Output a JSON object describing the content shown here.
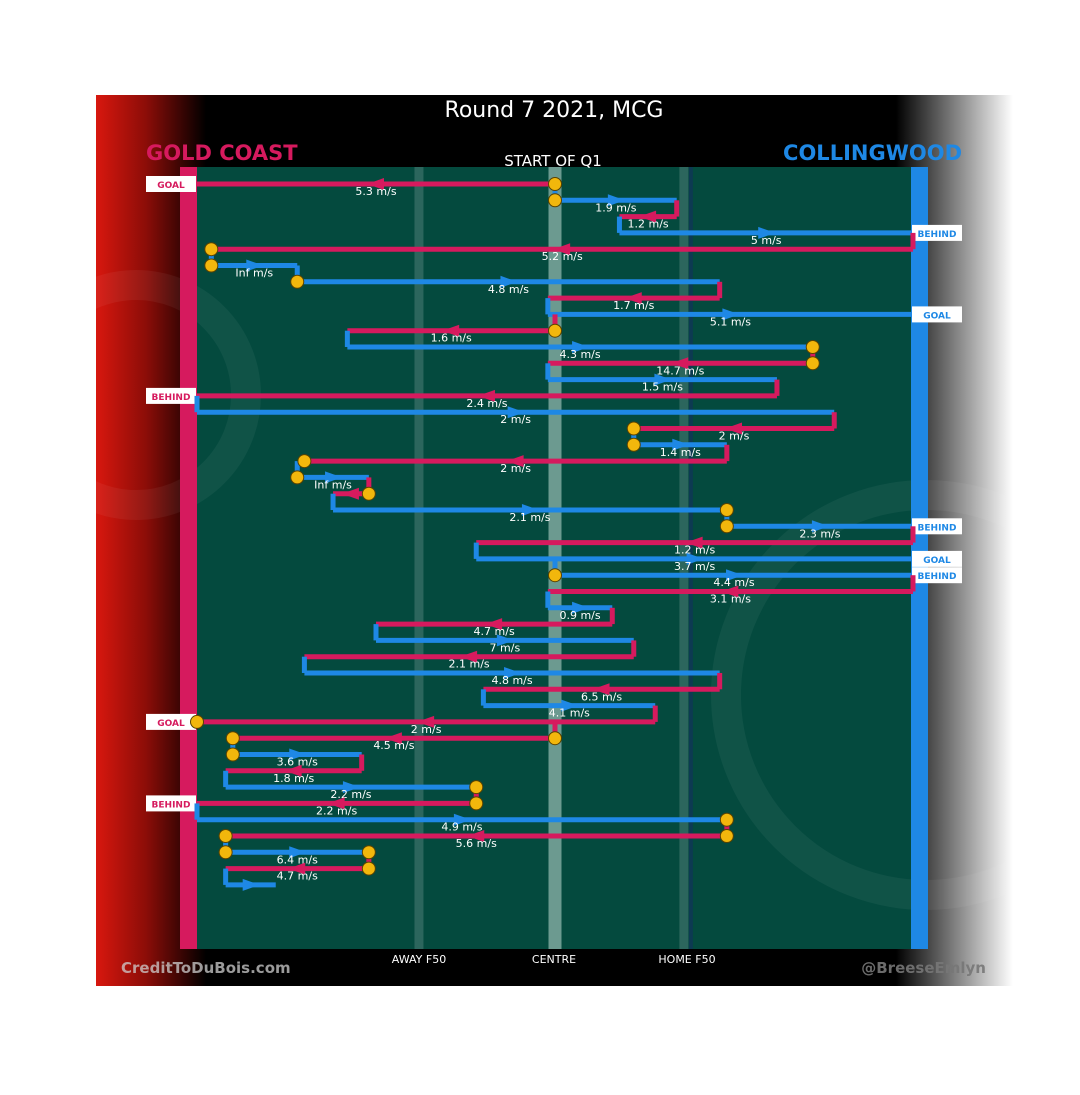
{
  "chart_data": {
    "type": "line",
    "title": "Round 7 2021, MCG",
    "subtitle": "START OF Q1",
    "teams": {
      "home": {
        "name": "GOLD COAST",
        "color": "#d61a5e"
      },
      "away": {
        "name": "COLLINGWOOD",
        "color": "#1e88e5"
      }
    },
    "zone_labels": [
      "AWAY F50",
      "CENTRE",
      "HOME F50"
    ],
    "footer": {
      "left": "CreditToDuBois.com",
      "right": "@BreeseEmlyn"
    },
    "colors": {
      "pitch": "#044a3e",
      "stoppage": "#f2b70c",
      "text": "#ffffff"
    },
    "x_positions": {
      "gold_coast_goal": 0,
      "away_f50": 0.31,
      "centre": 0.5,
      "home_f50": 0.68,
      "collingwood_goal": 1
    },
    "possession_chains": [
      {
        "team": "gold_coast",
        "from": 0.5,
        "to": 0.0,
        "speed": "5.3 m/s",
        "result": "GOAL",
        "start_stoppage": true
      },
      {
        "team": "collingwood",
        "from": 0.5,
        "to": 0.67,
        "speed": "1.9 m/s",
        "start_stoppage": true
      },
      {
        "team": "gold_coast",
        "from": 0.67,
        "to": 0.59,
        "speed": "1.2 m/s"
      },
      {
        "team": "collingwood",
        "from": 0.59,
        "to": 1.0,
        "speed": "5 m/s",
        "result": "BEHIND"
      },
      {
        "team": "gold_coast",
        "from": 1.0,
        "to": 0.02,
        "speed": "5.2 m/s",
        "end_stoppage": true
      },
      {
        "team": "collingwood",
        "from": 0.02,
        "to": 0.14,
        "speed": "Inf m/s",
        "start_stoppage": true
      },
      {
        "team": "collingwood",
        "from": 0.14,
        "to": 0.73,
        "speed": "4.8 m/s",
        "start_stoppage": true
      },
      {
        "team": "gold_coast",
        "from": 0.73,
        "to": 0.49,
        "speed": "1.7 m/s"
      },
      {
        "team": "collingwood",
        "from": 0.49,
        "to": 1.0,
        "speed": "5.1 m/s",
        "result": "GOAL"
      },
      {
        "team": "gold_coast",
        "from": 0.5,
        "to": 0.21,
        "speed": "1.6 m/s",
        "start_stoppage": true
      },
      {
        "team": "collingwood",
        "from": 0.21,
        "to": 0.86,
        "speed": "4.3 m/s",
        "end_stoppage": true
      },
      {
        "team": "gold_coast",
        "from": 0.86,
        "to": 0.49,
        "speed": "14.7 m/s",
        "start_stoppage": true
      },
      {
        "team": "collingwood",
        "from": 0.49,
        "to": 0.81,
        "speed": "1.5 m/s"
      },
      {
        "team": "gold_coast",
        "from": 0.81,
        "to": 0.0,
        "speed": "2.4 m/s",
        "result": "BEHIND"
      },
      {
        "team": "collingwood",
        "from": 0.0,
        "to": 0.89,
        "speed": "2 m/s"
      },
      {
        "team": "gold_coast",
        "from": 0.89,
        "to": 0.61,
        "speed": "2 m/s",
        "end_stoppage": true
      },
      {
        "team": "collingwood",
        "from": 0.61,
        "to": 0.74,
        "speed": "1.4 m/s",
        "start_stoppage": true
      },
      {
        "team": "gold_coast",
        "from": 0.74,
        "to": 0.15,
        "speed": "2 m/s",
        "end_stoppage": true
      },
      {
        "team": "collingwood",
        "from": 0.14,
        "to": 0.24,
        "speed": "Inf m/s",
        "start_stoppage": true
      },
      {
        "team": "gold_coast",
        "from": 0.24,
        "to": 0.19,
        "speed": "",
        "start_stoppage": true
      },
      {
        "team": "collingwood",
        "from": 0.19,
        "to": 0.74,
        "speed": "2.1 m/s",
        "end_stoppage": true
      },
      {
        "team": "collingwood",
        "from": 0.74,
        "to": 1.0,
        "speed": "2.3 m/s",
        "result": "BEHIND",
        "start_stoppage": true
      },
      {
        "team": "gold_coast",
        "from": 1.0,
        "to": 0.39,
        "speed": "1.2 m/s"
      },
      {
        "team": "collingwood",
        "from": 0.39,
        "to": 1.0,
        "speed": "3.7 m/s",
        "result": "GOAL"
      },
      {
        "team": "collingwood",
        "from": 0.5,
        "to": 1.0,
        "speed": "4.4 m/s",
        "result": "BEHIND",
        "start_stoppage": true
      },
      {
        "team": "gold_coast",
        "from": 1.0,
        "to": 0.49,
        "speed": "3.1 m/s"
      },
      {
        "team": "collingwood",
        "from": 0.49,
        "to": 0.58,
        "speed": "0.9 m/s"
      },
      {
        "team": "gold_coast",
        "from": 0.58,
        "to": 0.25,
        "speed": "4.7 m/s"
      },
      {
        "team": "collingwood",
        "from": 0.25,
        "to": 0.61,
        "speed": "7 m/s"
      },
      {
        "team": "gold_coast",
        "from": 0.61,
        "to": 0.15,
        "speed": "2.1 m/s"
      },
      {
        "team": "collingwood",
        "from": 0.15,
        "to": 0.73,
        "speed": "4.8 m/s"
      },
      {
        "team": "gold_coast",
        "from": 0.73,
        "to": 0.4,
        "speed": "6.5 m/s"
      },
      {
        "team": "collingwood",
        "from": 0.4,
        "to": 0.64,
        "speed": "4.1 m/s"
      },
      {
        "team": "gold_coast",
        "from": 0.64,
        "to": 0.0,
        "speed": "2 m/s",
        "result": "GOAL",
        "end_stoppage": true
      },
      {
        "team": "gold_coast",
        "from": 0.5,
        "to": 0.05,
        "speed": "4.5 m/s",
        "start_stoppage": true,
        "end_stoppage": true
      },
      {
        "team": "collingwood",
        "from": 0.05,
        "to": 0.23,
        "speed": "3.6 m/s",
        "start_stoppage": true
      },
      {
        "team": "gold_coast",
        "from": 0.23,
        "to": 0.04,
        "speed": "1.8 m/s"
      },
      {
        "team": "collingwood",
        "from": 0.04,
        "to": 0.39,
        "speed": "2.2 m/s",
        "end_stoppage": true
      },
      {
        "team": "gold_coast",
        "from": 0.39,
        "to": 0.0,
        "speed": "2.2 m/s",
        "result": "BEHIND",
        "start_stoppage": true
      },
      {
        "team": "collingwood",
        "from": 0.0,
        "to": 0.74,
        "speed": "4.9 m/s",
        "end_stoppage": true
      },
      {
        "team": "gold_coast",
        "from": 0.74,
        "to": 0.04,
        "speed": "5.6 m/s",
        "start_stoppage": true,
        "end_stoppage": true
      },
      {
        "team": "collingwood",
        "from": 0.04,
        "to": 0.24,
        "speed": "6.4 m/s",
        "start_stoppage": true,
        "end_stoppage": true
      },
      {
        "team": "gold_coast",
        "from": 0.24,
        "to": 0.04,
        "speed": "4.7 m/s",
        "start_stoppage": true
      },
      {
        "team": "collingwood",
        "from": 0.04,
        "to": 0.11,
        "speed": ""
      }
    ]
  }
}
